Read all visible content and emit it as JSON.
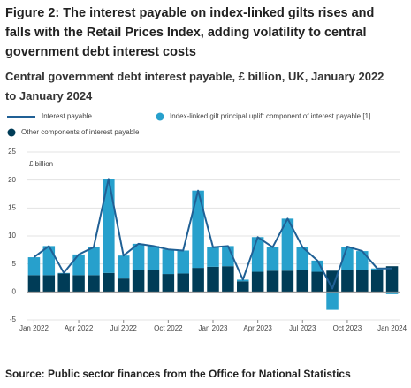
{
  "chart_data": {
    "type": "bar",
    "stacked": true,
    "title": "Figure 2: The interest payable on index-linked gilts rises and falls with the Retail Prices Index, adding volatility to central government debt interest costs",
    "subtitle": "Central government debt interest payable, £ billion, UK, January 2022 to January 2024",
    "y_label": "£ billion",
    "source": "Source: Public sector finances from the Office for National Statistics",
    "categories": [
      "Jan 2022",
      null,
      null,
      "Apr 2022",
      null,
      null,
      "Jul 2022",
      null,
      null,
      "Oct 2022",
      null,
      null,
      "Jan 2023",
      null,
      null,
      "Apr 2023",
      null,
      null,
      "Jul 2023",
      null,
      null,
      "Oct 2023",
      null,
      null,
      "Jan 2024"
    ],
    "series": [
      {
        "name": "Interest payable",
        "type": "line",
        "color": "#206095",
        "values": [
          6.2,
          8.2,
          3.4,
          6.7,
          8.0,
          20.2,
          6.5,
          8.6,
          8.2,
          7.6,
          7.4,
          18.1,
          8.0,
          8.2,
          2.2,
          9.8,
          8.0,
          13.1,
          8.0,
          5.6,
          0.6,
          8.1,
          7.3,
          4.2,
          4.2
        ]
      },
      {
        "name": "Index-linked gilt principal uplift component of interest payable [1]",
        "type": "bar",
        "color": "#27a0cc",
        "values": [
          3.2,
          5.2,
          0.1,
          3.7,
          5.0,
          16.8,
          4.1,
          4.7,
          4.3,
          4.4,
          4.1,
          13.8,
          3.5,
          3.6,
          0.3,
          6.2,
          4.2,
          9.3,
          4.0,
          2.0,
          -3.2,
          4.2,
          3.3,
          0.2,
          -0.4
        ]
      },
      {
        "name": "Other components of interest payable",
        "type": "bar",
        "color": "#003c57",
        "values": [
          3.0,
          3.0,
          3.3,
          3.0,
          3.0,
          3.4,
          2.4,
          3.9,
          3.9,
          3.2,
          3.3,
          4.3,
          4.5,
          4.6,
          1.9,
          3.6,
          3.8,
          3.8,
          4.0,
          3.6,
          3.8,
          3.9,
          4.0,
          4.0,
          4.6
        ]
      }
    ],
    "ylim": [
      -5,
      25
    ],
    "yticks": [
      -5,
      0,
      5,
      10,
      15,
      20,
      25
    ],
    "grid": true
  }
}
